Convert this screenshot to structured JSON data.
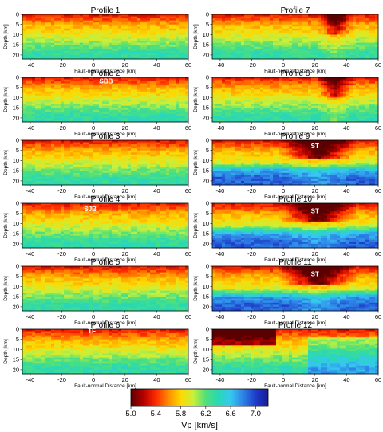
{
  "chart_data": {
    "type": "heatmap",
    "panels": [
      {
        "title": "Profile 1",
        "annotations": []
      },
      {
        "title": "Profile 2",
        "annotations": [
          {
            "text": "SBB",
            "x": 8,
            "depth": 3
          }
        ]
      },
      {
        "title": "Profile 3",
        "annotations": []
      },
      {
        "title": "Profile 4",
        "annotations": [
          {
            "text": "SJB",
            "x": -2,
            "depth": 4
          }
        ]
      },
      {
        "title": "Profile 5",
        "annotations": []
      },
      {
        "title": "Profile 6",
        "annotations": [
          {
            "text": "TF",
            "x": -1,
            "depth": 2
          }
        ]
      },
      {
        "title": "Profile 7",
        "annotations": []
      },
      {
        "title": "Profile 8",
        "annotations": []
      },
      {
        "title": "Profile 9",
        "annotations": [
          {
            "text": "ST",
            "x": 20,
            "depth": 4
          }
        ]
      },
      {
        "title": "Profile 10",
        "annotations": [
          {
            "text": "ST",
            "x": 20,
            "depth": 5
          }
        ]
      },
      {
        "title": "Profile 11",
        "annotations": [
          {
            "text": "ST",
            "x": 20,
            "depth": 5
          }
        ]
      },
      {
        "title": "Profile 12",
        "annotations": []
      }
    ],
    "xlabel": "Fault-normal Distance [km]",
    "ylabel": "Depth [km]",
    "xlim": [
      -45,
      60
    ],
    "ylim": [
      0,
      22
    ],
    "xticks": [
      -40,
      -20,
      0,
      20,
      40,
      60
    ],
    "yticks": [
      0,
      5,
      10,
      15,
      20
    ],
    "colorbar": {
      "label": "Vp [km/s]",
      "range": [
        5.0,
        7.2
      ],
      "ticks": [
        "5.0",
        "5.4",
        "5.8",
        "6.2",
        "6.6",
        "7.0"
      ],
      "tick_values": [
        5.0,
        5.4,
        5.8,
        6.2,
        6.6,
        7.0
      ]
    },
    "colorscale": [
      "#5a0000",
      "#b40000",
      "#ff2a00",
      "#ff8c00",
      "#ffd800",
      "#c8f03c",
      "#50e07a",
      "#28d8b4",
      "#36c8f0",
      "#2e82e6",
      "#1e3cc8",
      "#1a1a96"
    ]
  }
}
